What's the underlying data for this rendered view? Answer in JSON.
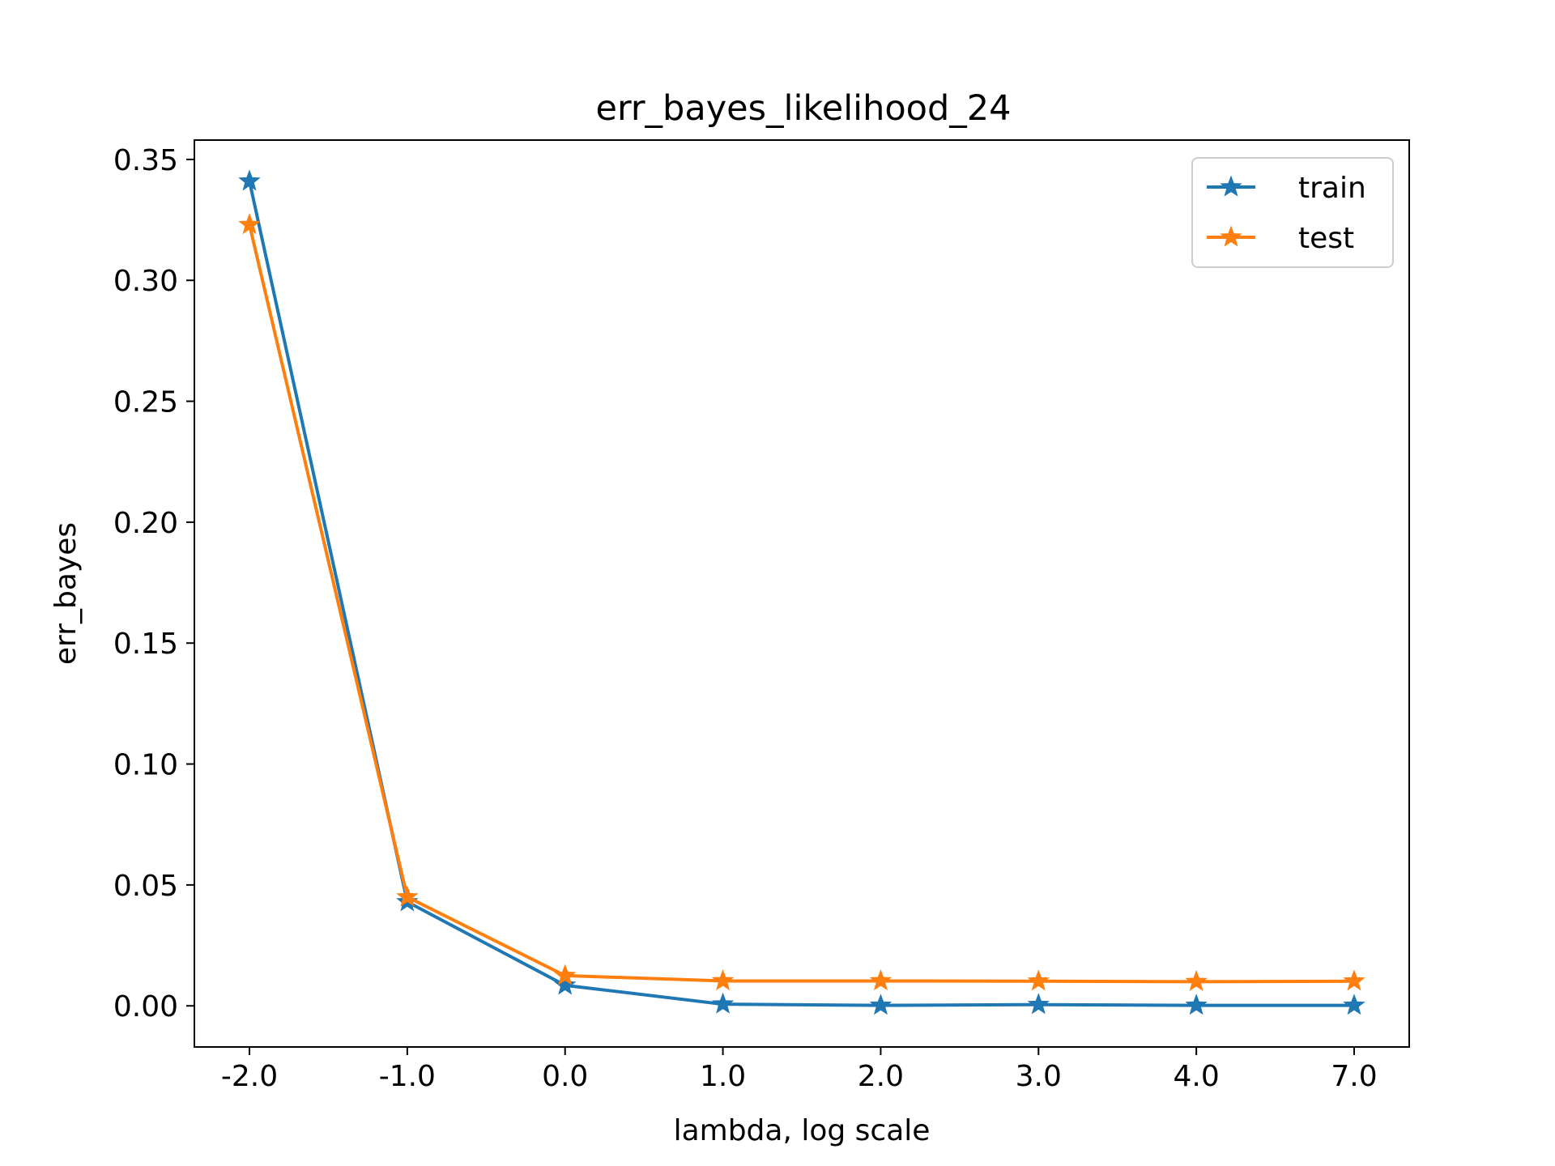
{
  "chart_data": {
    "type": "line",
    "title": "err_bayes_likelihood_24",
    "xlabel": "lambda, log scale",
    "ylabel": "err_bayes",
    "categories": [
      "-2.0",
      "-1.0",
      "0.0",
      "1.0",
      "2.0",
      "3.0",
      "4.0",
      "7.0"
    ],
    "ylim": [
      -0.017,
      0.358
    ],
    "yticks": [
      "0.00",
      "0.05",
      "0.10",
      "0.15",
      "0.20",
      "0.25",
      "0.30",
      "0.35"
    ],
    "ytick_values": [
      0.0,
      0.05,
      0.1,
      0.15,
      0.2,
      0.25,
      0.3,
      0.35
    ],
    "grid": false,
    "legend": "top-right",
    "marker": "star",
    "series": [
      {
        "name": "train",
        "color": "#1f77b4",
        "values": [
          0.341,
          0.043,
          0.0085,
          0.0007,
          0.0002,
          0.0005,
          0.0002,
          0.0002
        ]
      },
      {
        "name": "test",
        "color": "#ff7f0e",
        "values": [
          0.323,
          0.045,
          0.0125,
          0.0103,
          0.0103,
          0.0102,
          0.01,
          0.0102
        ]
      }
    ]
  }
}
